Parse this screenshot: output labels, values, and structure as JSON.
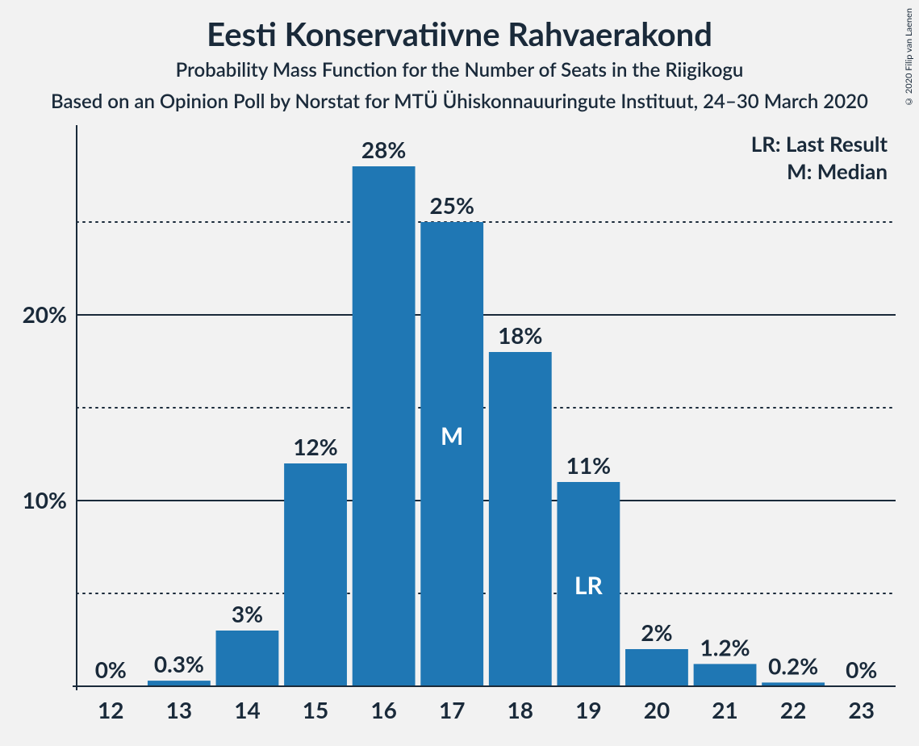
{
  "title": "Eesti Konservatiivne Rahvaerakond",
  "subtitle": "Probability Mass Function for the Number of Seats in the Riigikogu",
  "subtitle2": "Based on an Opinion Poll by Norstat for MTÜ Ühiskonnauuringute Instituut, 24–30 March 2020",
  "copyright": "© 2020 Filip van Laenen",
  "legend": {
    "lr": "LR: Last Result",
    "m": "M: Median"
  },
  "chart": {
    "type": "bar",
    "categories": [
      "12",
      "13",
      "14",
      "15",
      "16",
      "17",
      "18",
      "19",
      "20",
      "21",
      "22",
      "23"
    ],
    "values": [
      0,
      0.3,
      3,
      12,
      28,
      25,
      18,
      11,
      2,
      1.2,
      0.2,
      0
    ],
    "value_labels": [
      "0%",
      "0.3%",
      "3%",
      "12%",
      "28%",
      "25%",
      "18%",
      "11%",
      "2%",
      "1.2%",
      "0.2%",
      "0%"
    ],
    "bar_color": "#1f77b4",
    "background_color": "#f2f2f2",
    "text_color": "#1a2a3a",
    "ylim": [
      0,
      30
    ],
    "yticks_solid": [
      10,
      20
    ],
    "yticks_dotted": [
      5,
      15,
      25
    ],
    "ytick_labels": {
      "10": "10%",
      "20": "20%"
    },
    "bar_width": 0.92,
    "median_index": 5,
    "median_glyph": "M",
    "last_result_index": 7,
    "last_result_glyph": "LR",
    "title_fontsize": 40,
    "subtitle_fontsize": 24,
    "axis_label_fontsize": 28,
    "value_label_fontsize": 28,
    "legend_fontsize": 26
  }
}
